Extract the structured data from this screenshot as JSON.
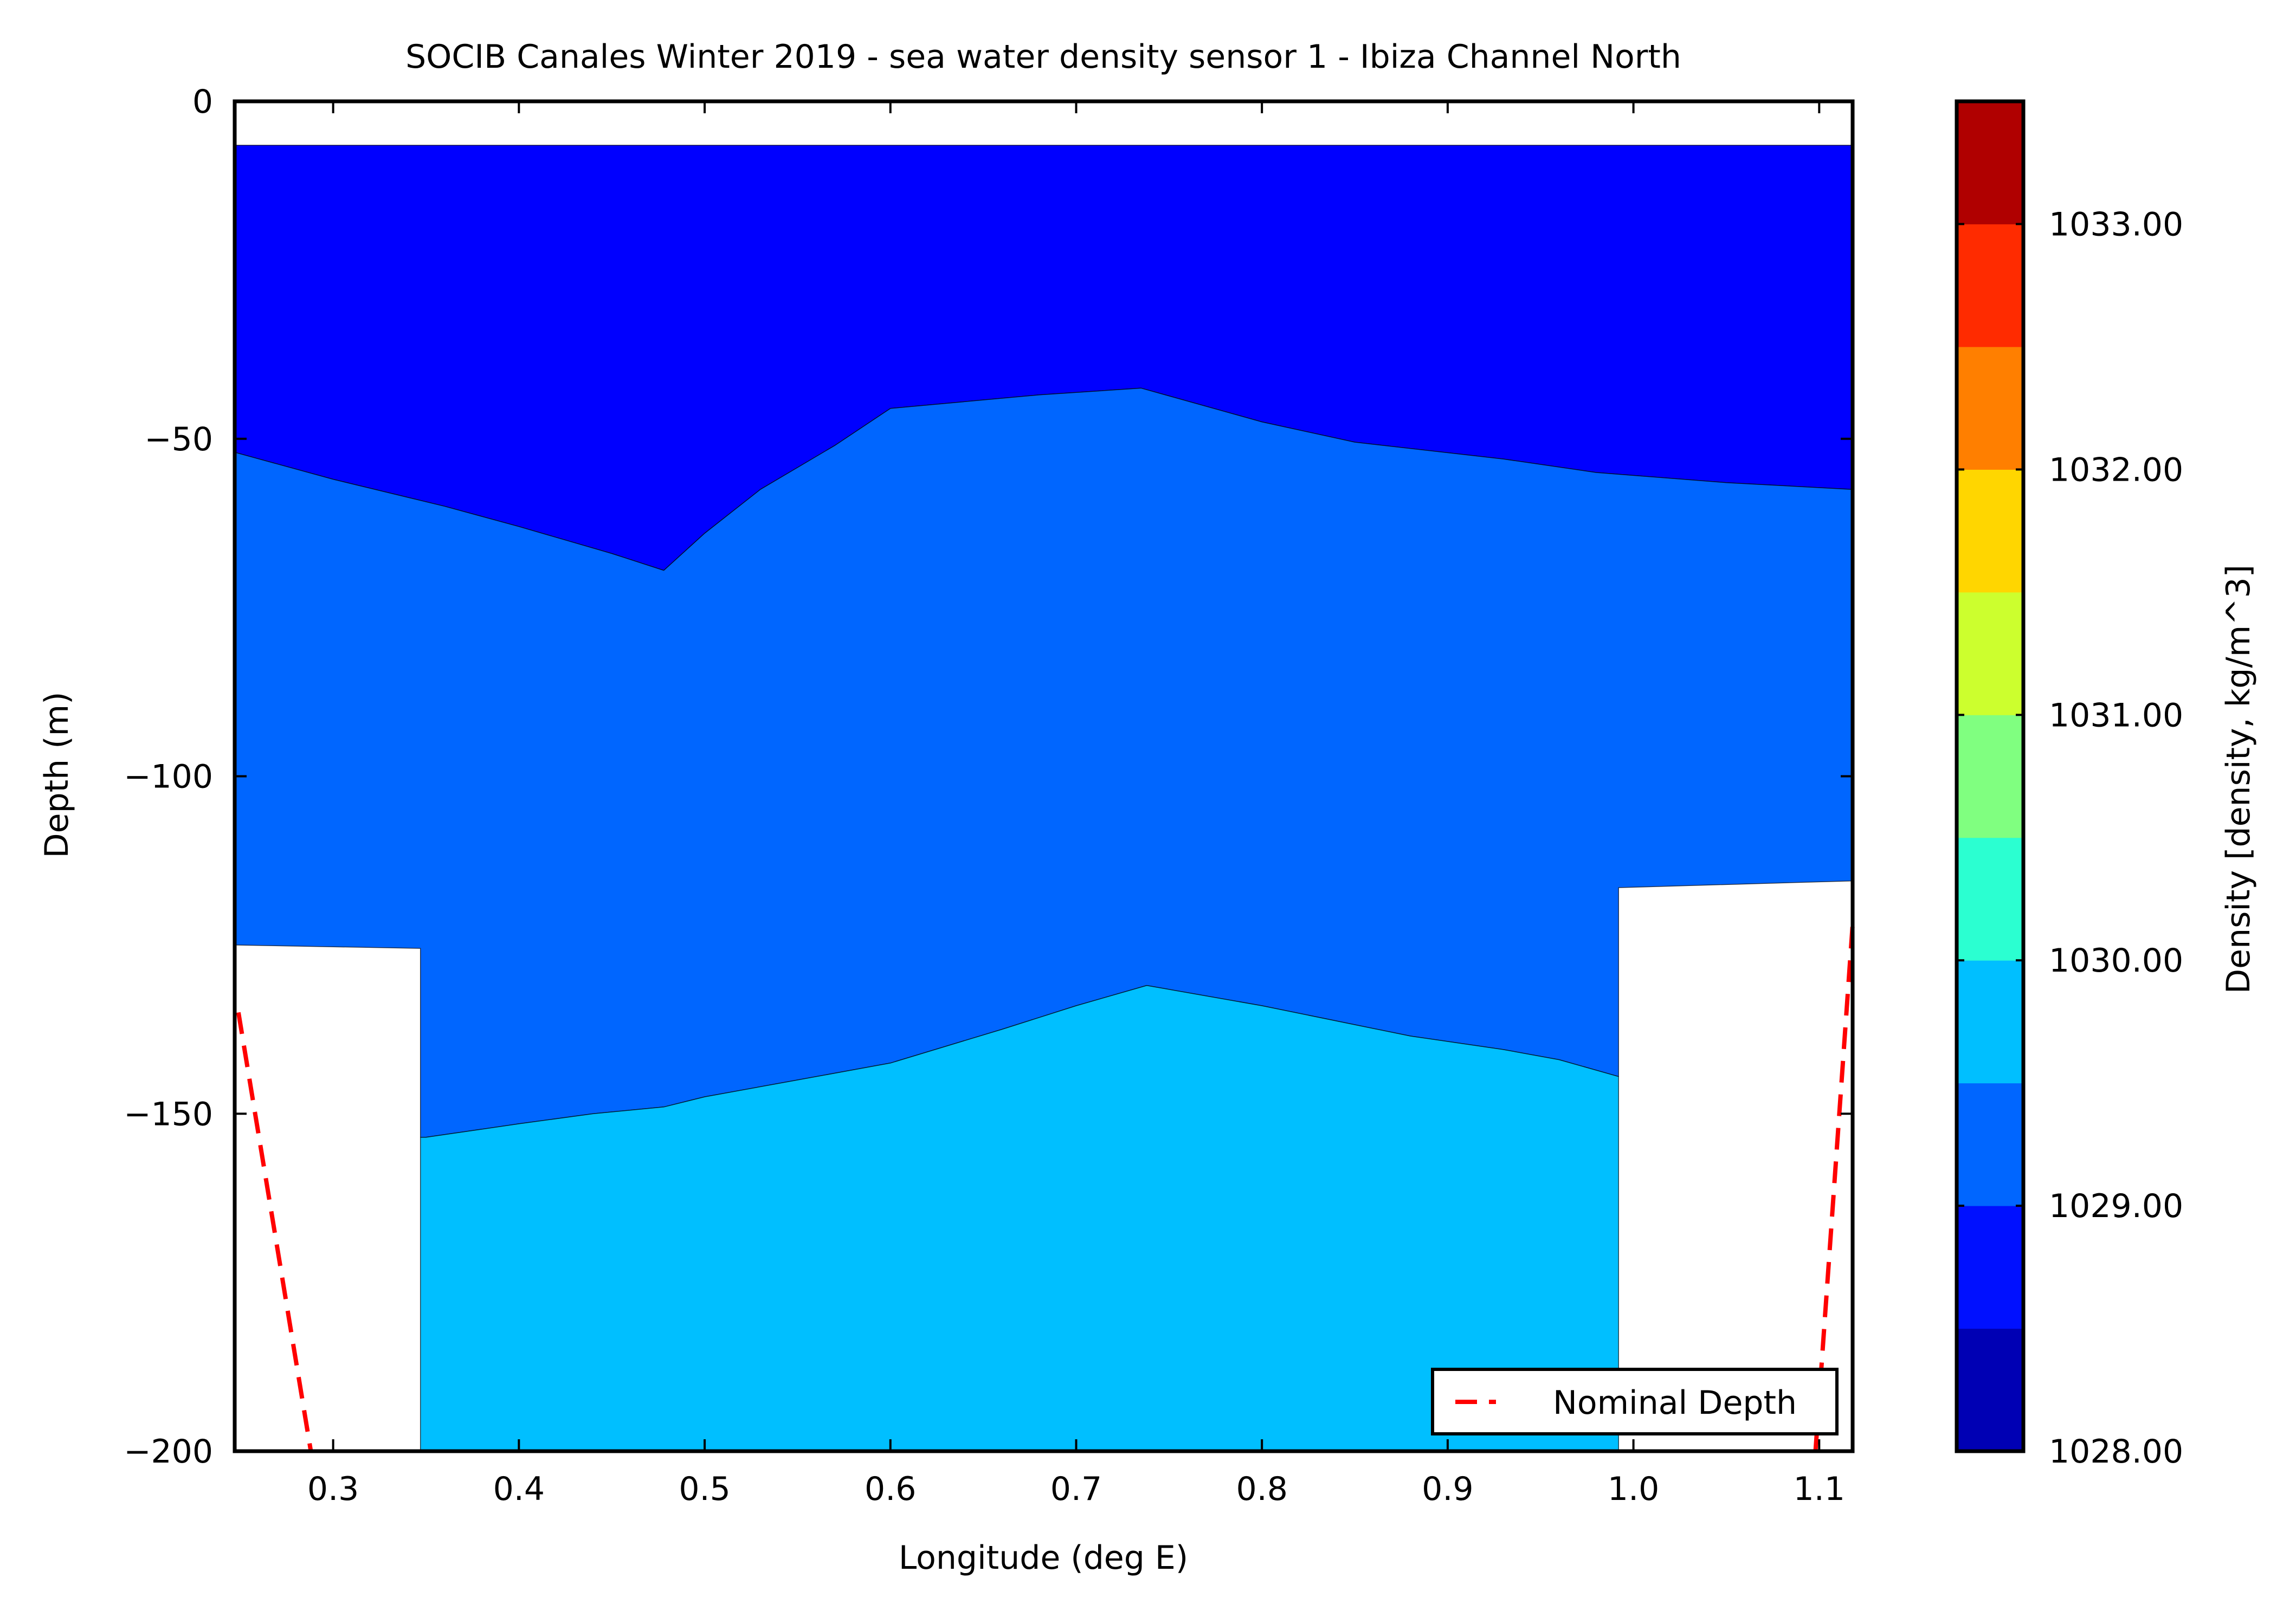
{
  "chart_data": {
    "type": "contourf",
    "title": "SOCIB Canales Winter 2019 - sea water density sensor 1  -  Ibiza Channel North",
    "xlabel": "Longitude (deg E)",
    "ylabel": "Depth (m)",
    "xlim": [
      0.247,
      1.118
    ],
    "ylim": [
      -200,
      0
    ],
    "x_ticks": [
      0.3,
      0.4,
      0.5,
      0.6,
      0.7,
      0.8,
      0.9,
      1.0,
      1.1
    ],
    "x_tick_labels": [
      "0.3",
      "0.4",
      "0.5",
      "0.6",
      "0.7",
      "0.8",
      "0.9",
      "1.0",
      "1.1"
    ],
    "y_ticks": [
      0,
      -50,
      -100,
      -150,
      -200
    ],
    "y_tick_labels": [
      "0",
      "−50",
      "−100",
      "−150",
      "−200"
    ],
    "grid": false,
    "regions": [
      {
        "level_range": [
          1028.5,
          1029.0
        ],
        "color": "#0000ff",
        "polygon": [
          [
            0.247,
            -6.5
          ],
          [
            1.118,
            -6.5
          ],
          [
            1.118,
            -57.5
          ],
          [
            1.05,
            -56.5
          ],
          [
            0.98,
            -55
          ],
          [
            0.93,
            -53
          ],
          [
            0.85,
            -50.5
          ],
          [
            0.8,
            -47.5
          ],
          [
            0.735,
            -42.5
          ],
          [
            0.68,
            -43.5
          ],
          [
            0.6,
            -45.5
          ],
          [
            0.57,
            -51
          ],
          [
            0.53,
            -57.5
          ],
          [
            0.5,
            -64
          ],
          [
            0.478,
            -69.5
          ],
          [
            0.45,
            -67
          ],
          [
            0.4,
            -63
          ],
          [
            0.36,
            -60
          ],
          [
            0.3,
            -56
          ],
          [
            0.247,
            -52
          ]
        ]
      },
      {
        "level_range": [
          1029.0,
          1029.5
        ],
        "color": "#0066ff",
        "polygon": [
          [
            0.247,
            -52
          ],
          [
            0.3,
            -56
          ],
          [
            0.36,
            -60
          ],
          [
            0.4,
            -63
          ],
          [
            0.45,
            -67
          ],
          [
            0.478,
            -69.5
          ],
          [
            0.5,
            -64
          ],
          [
            0.53,
            -57.5
          ],
          [
            0.57,
            -51
          ],
          [
            0.6,
            -45.5
          ],
          [
            0.68,
            -43.5
          ],
          [
            0.735,
            -42.5
          ],
          [
            0.8,
            -47.5
          ],
          [
            0.85,
            -50.5
          ],
          [
            0.93,
            -53
          ],
          [
            0.98,
            -55
          ],
          [
            1.05,
            -56.5
          ],
          [
            1.118,
            -57.5
          ],
          [
            1.118,
            -115.5
          ],
          [
            0.992,
            -116.5
          ],
          [
            0.992,
            -144.5
          ],
          [
            0.96,
            -142
          ],
          [
            0.93,
            -140.5
          ],
          [
            0.88,
            -138.5
          ],
          [
            0.8,
            -134
          ],
          [
            0.738,
            -131
          ],
          [
            0.7,
            -134
          ],
          [
            0.66,
            -137.5
          ],
          [
            0.6,
            -142.5
          ],
          [
            0.55,
            -145
          ],
          [
            0.5,
            -147.5
          ],
          [
            0.478,
            -149
          ],
          [
            0.44,
            -150
          ],
          [
            0.4,
            -151.5
          ],
          [
            0.35,
            -153.5
          ],
          [
            0.347,
            -153.5
          ],
          [
            0.347,
            -125.5
          ],
          [
            0.247,
            -125
          ]
        ]
      },
      {
        "level_range": [
          1029.5,
          1030.0
        ],
        "color": "#00bfff",
        "polygon": [
          [
            0.347,
            -153.5
          ],
          [
            0.35,
            -153.5
          ],
          [
            0.4,
            -151.5
          ],
          [
            0.44,
            -150
          ],
          [
            0.478,
            -149
          ],
          [
            0.5,
            -147.5
          ],
          [
            0.55,
            -145
          ],
          [
            0.6,
            -142.5
          ],
          [
            0.66,
            -137.5
          ],
          [
            0.7,
            -134
          ],
          [
            0.738,
            -131
          ],
          [
            0.8,
            -134
          ],
          [
            0.88,
            -138.5
          ],
          [
            0.93,
            -140.5
          ],
          [
            0.96,
            -142
          ],
          [
            0.992,
            -144.5
          ],
          [
            0.992,
            -200
          ],
          [
            0.347,
            -200
          ]
        ]
      }
    ],
    "series": [
      {
        "name": "Nominal Depth",
        "style": "dashed",
        "color": "#ff0000",
        "segments": [
          [
            [
              0.249,
              -135
            ],
            [
              0.288,
              -200
            ]
          ],
          [
            [
              1.098,
              -200
            ],
            [
              1.118,
              -122
            ]
          ]
        ]
      }
    ],
    "legend": {
      "placement": "lower right",
      "entries": [
        "Nominal Depth"
      ]
    },
    "colorbar": {
      "label": "Density [density, kg/m^3]",
      "range": [
        1028.0,
        1033.5
      ],
      "bands": [
        {
          "from": 1028.0,
          "to": 1028.5,
          "color": "#0000b4"
        },
        {
          "from": 1028.5,
          "to": 1029.0,
          "color": "#0010ff"
        },
        {
          "from": 1029.0,
          "to": 1029.5,
          "color": "#0066ff"
        },
        {
          "from": 1029.5,
          "to": 1030.0,
          "color": "#00bfff"
        },
        {
          "from": 1030.0,
          "to": 1030.5,
          "color": "#2bffd1"
        },
        {
          "from": 1030.5,
          "to": 1031.0,
          "color": "#80ff80"
        },
        {
          "from": 1031.0,
          "to": 1031.5,
          "color": "#ccff2e"
        },
        {
          "from": 1031.5,
          "to": 1032.0,
          "color": "#ffd600"
        },
        {
          "from": 1032.0,
          "to": 1032.5,
          "color": "#ff7f00"
        },
        {
          "from": 1032.5,
          "to": 1033.0,
          "color": "#ff2b00"
        },
        {
          "from": 1033.0,
          "to": 1033.5,
          "color": "#b00000"
        }
      ],
      "ticks": [
        1028.0,
        1029.0,
        1030.0,
        1031.0,
        1032.0,
        1033.0
      ],
      "tick_labels": [
        "1028.00",
        "1029.00",
        "1030.00",
        "1031.00",
        "1032.00",
        "1033.00"
      ]
    }
  }
}
